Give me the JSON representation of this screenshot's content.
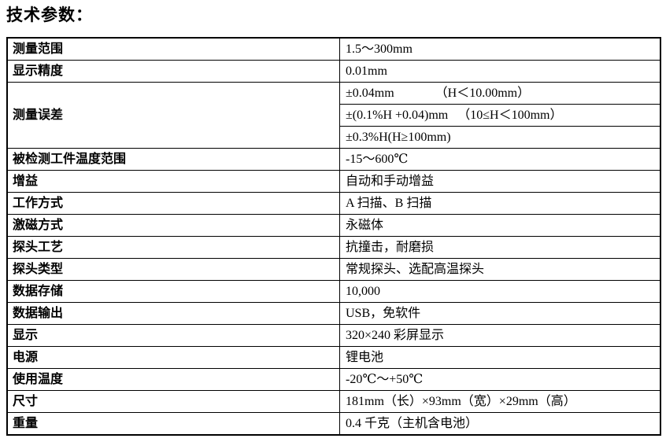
{
  "page_title": "技术参数：",
  "colors": {
    "background": "#ffffff",
    "text": "#000000",
    "border": "#000000"
  },
  "table": {
    "rows": [
      {
        "label": "测量范围",
        "value": "1.5～300mm"
      },
      {
        "label": "显示精度",
        "value": "0.01mm"
      },
      {
        "label": "测量误差",
        "label_rowspan": 3,
        "value": "±0.04mm             （H＜10.00mm）"
      },
      {
        "value": "±(0.1%H +0.04)mm   （10≤H＜100mm）"
      },
      {
        "value": "±0.3%H(H≥100mm)"
      },
      {
        "label": "被检测工件温度范围",
        "value": "-15～600℃"
      },
      {
        "label": "增益",
        "value": "自动和手动增益"
      },
      {
        "label": "工作方式",
        "value": "A 扫描、B 扫描"
      },
      {
        "label": "激磁方式",
        "value": "永磁体"
      },
      {
        "label": "探头工艺",
        "value": "抗撞击，耐磨损"
      },
      {
        "label": "探头类型",
        "value": "常规探头、选配高温探头"
      },
      {
        "label": "数据存储",
        "value": "10,000"
      },
      {
        "label": "数据输出",
        "value": "USB，免软件"
      },
      {
        "label": "显示",
        "value": "320×240 彩屏显示"
      },
      {
        "label": "电源",
        "value": "锂电池"
      },
      {
        "label": "使用温度",
        "value": "-20℃～+50℃"
      },
      {
        "label": "尺寸",
        "value": "181mm（长）×93mm（宽）×29mm（高）"
      },
      {
        "label": "重量",
        "value": "0.4 千克（主机含电池）"
      }
    ]
  }
}
